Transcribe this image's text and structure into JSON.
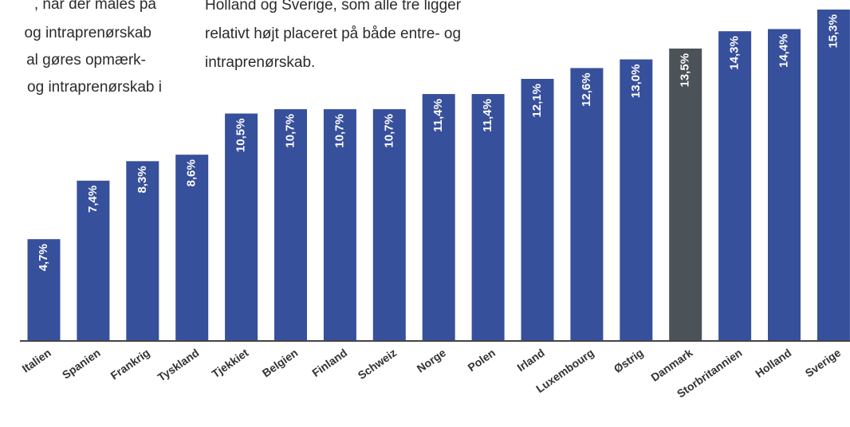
{
  "chart_data": {
    "type": "bar",
    "annotations_left": [
      ", når der måles på",
      "og intraprenørskab",
      "al gøres opmærk-",
      "og intraprenørskab i"
    ],
    "annotations_right": [
      "Holland og Sverige, som alle tre ligger",
      "relativt højt placeret på både entre- og",
      "intraprenørskab."
    ],
    "categories": [
      "Italien",
      "Spanien",
      "Frankrig",
      "Tyskland",
      "Tjekkiet",
      "Belgien",
      "Finland",
      "Schweiz",
      "Norge",
      "Polen",
      "Irland",
      "Luxembourg",
      "Østrig",
      "Danmark",
      "Storbritannien",
      "Holland",
      "Sverige"
    ],
    "values": [
      4.7,
      7.4,
      8.3,
      8.6,
      10.5,
      10.7,
      10.7,
      10.7,
      11.4,
      11.4,
      12.1,
      12.6,
      13.0,
      13.5,
      14.3,
      14.4,
      15.3
    ],
    "value_labels": [
      "4,7%",
      "7,4%",
      "8,3%",
      "8,6%",
      "10,5%",
      "10,7%",
      "10,7%",
      "10,7%",
      "11,4%",
      "11,4%",
      "12,1%",
      "12,6%",
      "13,0%",
      "13,5%",
      "14,3%",
      "14,4%",
      "15,3%"
    ],
    "colors": [
      "#37509c",
      "#37509c",
      "#37509c",
      "#37509c",
      "#37509c",
      "#37509c",
      "#37509c",
      "#37509c",
      "#37509c",
      "#37509c",
      "#37509c",
      "#37509c",
      "#37509c",
      "#4b5258",
      "#37509c",
      "#37509c",
      "#37509c"
    ]
  }
}
